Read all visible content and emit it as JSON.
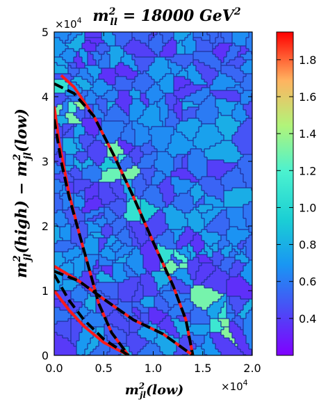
{
  "chart_data": {
    "type": "heatmap",
    "plot_style": "voronoi tessellation colored by value, with overlaid boundary curves",
    "title_base": "m",
    "title_sup": "2",
    "title_sub": "ll",
    "title_rest": " = 18000 GeV",
    "title_rest_sup": "2",
    "xlabel_base": "m",
    "xlabel_sup": "2",
    "xlabel_sub": "jl",
    "xlabel_rest": "(low)",
    "ylabel_base1": "m",
    "ylabel_sup1": "2",
    "ylabel_sub1": "jl",
    "ylabel_mid": "(high) − m",
    "ylabel_sup2": "2",
    "ylabel_sub2": "jl",
    "ylabel_end": "(low)",
    "x_multiplier": "×10",
    "x_multiplier_exp": "4",
    "y_multiplier": "×10",
    "y_multiplier_exp": "4",
    "xlim": [
      0,
      20000
    ],
    "ylim": [
      0,
      50000
    ],
    "xticks": [
      0,
      5000,
      10000,
      15000,
      20000
    ],
    "xtick_labels": [
      "0.0",
      "0.5",
      "1.0",
      "1.5",
      "2.0"
    ],
    "yticks": [
      0,
      10000,
      20000,
      30000,
      40000,
      50000
    ],
    "ytick_labels": [
      "0",
      "1",
      "2",
      "3",
      "4",
      "5"
    ],
    "colorbar": {
      "colormap": "rainbow",
      "range": [
        0.2,
        1.95
      ],
      "ticks": [
        0.4,
        0.6,
        0.8,
        1.0,
        1.2,
        1.4,
        1.6,
        1.8
      ],
      "tick_labels": [
        "0.4",
        "0.6",
        "0.8",
        "1.0",
        "1.2",
        "1.4",
        "1.6",
        "1.8"
      ]
    },
    "curves": [
      {
        "style": "red",
        "points": [
          [
            700,
            43300
          ],
          [
            2000,
            41500
          ],
          [
            4000,
            37000
          ],
          [
            6000,
            31000
          ],
          [
            8000,
            24500
          ],
          [
            10000,
            17500
          ],
          [
            12000,
            10800
          ],
          [
            13300,
            5500
          ],
          [
            14000,
            0
          ]
        ]
      },
      {
        "style": "black-dashed",
        "points": [
          [
            0,
            42000
          ],
          [
            2000,
            40500
          ],
          [
            4000,
            37000
          ],
          [
            6000,
            31000
          ],
          [
            8000,
            24500
          ],
          [
            10000,
            17500
          ],
          [
            12000,
            10800
          ],
          [
            13300,
            5500
          ],
          [
            14000,
            0
          ]
        ]
      },
      {
        "style": "red",
        "points": [
          [
            0,
            38500
          ],
          [
            500,
            33000
          ],
          [
            1500,
            25000
          ],
          [
            2500,
            19000
          ],
          [
            3500,
            13500
          ],
          [
            4500,
            8000
          ],
          [
            5800,
            3500
          ],
          [
            7500,
            0
          ]
        ]
      },
      {
        "style": "black-dashed",
        "points": [
          [
            0,
            36500
          ],
          [
            700,
            30000
          ],
          [
            1500,
            24500
          ],
          [
            2500,
            19000
          ],
          [
            3500,
            13500
          ],
          [
            4500,
            8000
          ],
          [
            5800,
            3500
          ],
          [
            7500,
            0
          ]
        ]
      },
      {
        "style": "red",
        "points": [
          [
            0,
            13800
          ],
          [
            2500,
            11500
          ],
          [
            5000,
            8700
          ],
          [
            8000,
            5500
          ],
          [
            11000,
            3300
          ],
          [
            14000,
            0
          ]
        ]
      },
      {
        "style": "black-dashed",
        "points": [
          [
            0,
            13000
          ],
          [
            2500,
            11500
          ],
          [
            5000,
            8700
          ],
          [
            8000,
            5500
          ],
          [
            11000,
            3300
          ],
          [
            14000,
            0
          ]
        ]
      },
      {
        "style": "red",
        "points": [
          [
            0,
            10000
          ],
          [
            1500,
            7000
          ],
          [
            3000,
            4500
          ],
          [
            5000,
            2000
          ],
          [
            7500,
            0
          ]
        ]
      },
      {
        "style": "black-dashed",
        "points": [
          [
            0,
            12500
          ],
          [
            1500,
            8500
          ],
          [
            3000,
            5500
          ],
          [
            5000,
            2500
          ],
          [
            7500,
            0
          ]
        ]
      }
    ]
  }
}
